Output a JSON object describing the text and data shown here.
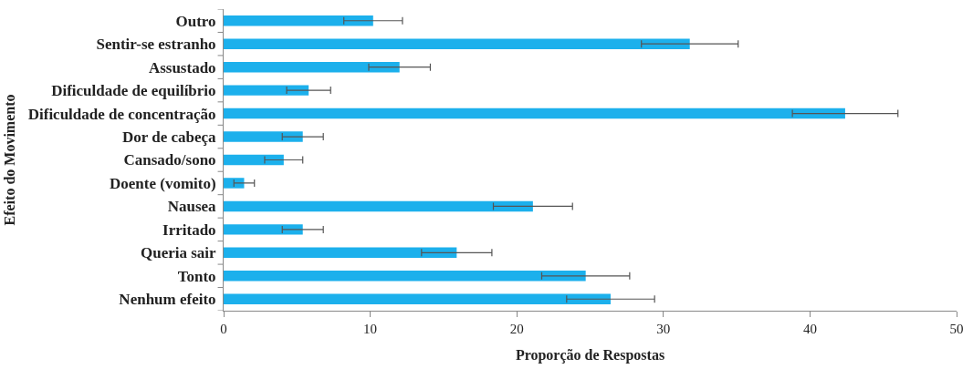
{
  "chart_data": {
    "type": "bar",
    "orientation": "horizontal",
    "xlabel": "Proporção de Respostas",
    "ylabel": "Efeito do Movimento",
    "categories": [
      "Outro",
      "Sentir-se estranho",
      "Assustado",
      "Dificuldade de equilíbrio",
      "Dificuldade de concentração",
      "Dor de cabeça",
      "Cansado/sono",
      "Doente (vomito)",
      "Nausea",
      "Irritado",
      "Queria sair",
      "Tonto",
      "Nenhum efeito"
    ],
    "series": [
      {
        "color": "#1cb0ec",
        "values": [
          10.2,
          31.8,
          12.0,
          5.8,
          42.4,
          5.4,
          4.1,
          1.4,
          21.1,
          5.4,
          15.9,
          24.7,
          26.4
        ],
        "errors": [
          2.0,
          3.3,
          2.1,
          1.5,
          3.6,
          1.4,
          1.3,
          0.7,
          2.7,
          1.4,
          2.4,
          3.0,
          3.0
        ]
      }
    ],
    "xlim": [
      0,
      50
    ],
    "xticks": [
      0,
      10,
      20,
      30,
      40,
      50
    ]
  }
}
